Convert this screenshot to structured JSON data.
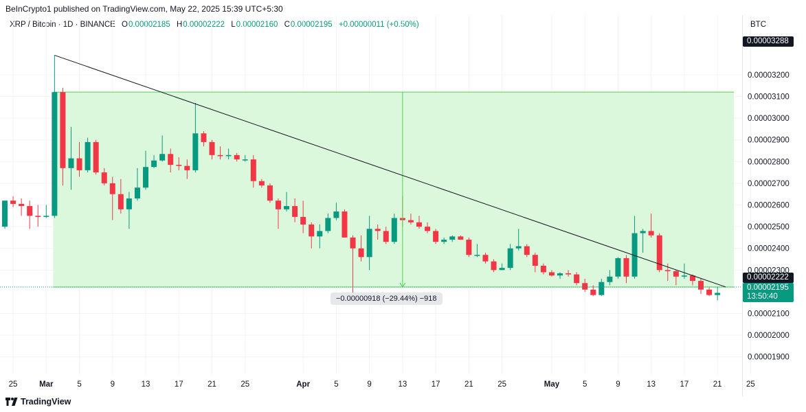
{
  "header": {
    "published": "BeInCrypto1 published on TradingView.com, May 22, 2025 15:39 UTC+5:30"
  },
  "legend": {
    "symbol": "XRP / Bitcoin · 1D · BINANCE",
    "open_label": "O",
    "open": "0.00002185",
    "high_label": "H",
    "high": "0.00002222",
    "low_label": "L",
    "low": "0.00002160",
    "close_label": "C",
    "close": "0.00002195",
    "change": "+0.00000011 (+0.50%)"
  },
  "currency": "BTC",
  "price_tags": {
    "top": "0.00003288",
    "level": "0.00002222",
    "last": "0.00002195",
    "countdown": "13:50:40"
  },
  "measure": {
    "label": "−0.00000918 (−29.44%) −918"
  },
  "branding": {
    "name": "TradingView"
  },
  "colors": {
    "up": "#089981",
    "down": "#f23645",
    "zone": "#dcf8dc",
    "zone_line": "#4cd34c",
    "trendline": "#131722"
  },
  "chart_data": {
    "type": "candlestick",
    "title": "XRP / Bitcoin · 1D · BINANCE",
    "ylim": [
      1.82e-05,
      3.475e-05
    ],
    "xlim": [
      "2025-02-24",
      "2025-05-26"
    ],
    "y_ticks": [
      "0.00003200",
      "0.00003100",
      "0.00003000",
      "0.00002900",
      "0.00002800",
      "0.00002700",
      "0.00002600",
      "0.00002500",
      "0.00002400",
      "0.00002300",
      "0.00002100",
      "0.00002000",
      "0.00001900"
    ],
    "x_ticks": [
      {
        "date": "2025-02-25",
        "label": "25"
      },
      {
        "date": "2025-03-01",
        "label": "Mar"
      },
      {
        "date": "2025-03-05",
        "label": "5"
      },
      {
        "date": "2025-03-09",
        "label": "9"
      },
      {
        "date": "2025-03-13",
        "label": "13"
      },
      {
        "date": "2025-03-17",
        "label": "17"
      },
      {
        "date": "2025-03-21",
        "label": "21"
      },
      {
        "date": "2025-03-25",
        "label": "25"
      },
      {
        "date": "2025-04-01",
        "label": "Apr"
      },
      {
        "date": "2025-04-05",
        "label": "5"
      },
      {
        "date": "2025-04-09",
        "label": "9"
      },
      {
        "date": "2025-04-13",
        "label": "13"
      },
      {
        "date": "2025-04-17",
        "label": "17"
      },
      {
        "date": "2025-04-21",
        "label": "21"
      },
      {
        "date": "2025-04-25",
        "label": "25"
      },
      {
        "date": "2025-05-01",
        "label": "May"
      },
      {
        "date": "2025-05-05",
        "label": "5"
      },
      {
        "date": "2025-05-09",
        "label": "9"
      },
      {
        "date": "2025-05-13",
        "label": "13"
      },
      {
        "date": "2025-05-17",
        "label": "17"
      },
      {
        "date": "2025-05-21",
        "label": "21"
      },
      {
        "date": "2025-05-25",
        "label": "25"
      }
    ],
    "candles": [
      {
        "date": "2025-02-24",
        "o": 2.5e-05,
        "h": 2.62e-05,
        "l": 2.49e-05,
        "c": 2.62e-05
      },
      {
        "date": "2025-02-25",
        "o": 2.62e-05,
        "h": 2.64e-05,
        "l": 2.59e-05,
        "c": 2.605e-05
      },
      {
        "date": "2025-02-26",
        "o": 2.605e-05,
        "h": 2.63e-05,
        "l": 2.55e-05,
        "c": 2.595e-05
      },
      {
        "date": "2025-02-27",
        "o": 2.595e-05,
        "h": 2.62e-05,
        "l": 2.49e-05,
        "c": 2.55e-05
      },
      {
        "date": "2025-02-28",
        "o": 2.55e-05,
        "h": 2.6e-05,
        "l": 2.5e-05,
        "c": 2.545e-05
      },
      {
        "date": "2025-03-01",
        "o": 2.545e-05,
        "h": 2.6e-05,
        "l": 2.54e-05,
        "c": 2.55e-05
      },
      {
        "date": "2025-03-02",
        "o": 2.55e-05,
        "h": 3.29e-05,
        "l": 2.54e-05,
        "c": 3.12e-05
      },
      {
        "date": "2025-03-03",
        "o": 3.12e-05,
        "h": 3.14e-05,
        "l": 2.69e-05,
        "c": 2.77e-05
      },
      {
        "date": "2025-03-04",
        "o": 2.77e-05,
        "h": 2.96e-05,
        "l": 2.67e-05,
        "c": 2.815e-05
      },
      {
        "date": "2025-03-05",
        "o": 2.815e-05,
        "h": 2.89e-05,
        "l": 2.73e-05,
        "c": 2.76e-05
      },
      {
        "date": "2025-03-06",
        "o": 2.76e-05,
        "h": 2.91e-05,
        "l": 2.75e-05,
        "c": 2.89e-05
      },
      {
        "date": "2025-03-07",
        "o": 2.89e-05,
        "h": 2.9e-05,
        "l": 2.74e-05,
        "c": 2.75e-05
      },
      {
        "date": "2025-03-08",
        "o": 2.75e-05,
        "h": 2.77e-05,
        "l": 2.69e-05,
        "c": 2.7e-05
      },
      {
        "date": "2025-03-09",
        "o": 2.7e-05,
        "h": 2.73e-05,
        "l": 2.53e-05,
        "c": 2.65e-05
      },
      {
        "date": "2025-03-10",
        "o": 2.65e-05,
        "h": 2.72e-05,
        "l": 2.56e-05,
        "c": 2.58e-05
      },
      {
        "date": "2025-03-11",
        "o": 2.58e-05,
        "h": 2.66e-05,
        "l": 2.49e-05,
        "c": 2.63e-05
      },
      {
        "date": "2025-03-12",
        "o": 2.63e-05,
        "h": 2.77e-05,
        "l": 2.62e-05,
        "c": 2.68e-05
      },
      {
        "date": "2025-03-13",
        "o": 2.68e-05,
        "h": 2.85e-05,
        "l": 2.67e-05,
        "c": 2.775e-05
      },
      {
        "date": "2025-03-14",
        "o": 2.775e-05,
        "h": 2.83e-05,
        "l": 2.77e-05,
        "c": 2.805e-05
      },
      {
        "date": "2025-03-15",
        "o": 2.805e-05,
        "h": 2.92e-05,
        "l": 2.8e-05,
        "c": 2.835e-05
      },
      {
        "date": "2025-03-16",
        "o": 2.835e-05,
        "h": 2.86e-05,
        "l": 2.75e-05,
        "c": 2.785e-05
      },
      {
        "date": "2025-03-17",
        "o": 2.785e-05,
        "h": 2.82e-05,
        "l": 2.76e-05,
        "c": 2.78e-05
      },
      {
        "date": "2025-03-18",
        "o": 2.78e-05,
        "h": 2.81e-05,
        "l": 2.72e-05,
        "c": 2.76e-05
      },
      {
        "date": "2025-03-19",
        "o": 2.76e-05,
        "h": 3.07e-05,
        "l": 2.75e-05,
        "c": 2.93e-05
      },
      {
        "date": "2025-03-20",
        "o": 2.93e-05,
        "h": 2.94e-05,
        "l": 2.87e-05,
        "c": 2.89e-05
      },
      {
        "date": "2025-03-21",
        "o": 2.89e-05,
        "h": 2.9e-05,
        "l": 2.81e-05,
        "c": 2.83e-05
      },
      {
        "date": "2025-03-22",
        "o": 2.83e-05,
        "h": 2.87e-05,
        "l": 2.81e-05,
        "c": 2.825e-05
      },
      {
        "date": "2025-03-23",
        "o": 2.825e-05,
        "h": 2.86e-05,
        "l": 2.81e-05,
        "c": 2.83e-05
      },
      {
        "date": "2025-03-24",
        "o": 2.83e-05,
        "h": 2.84e-05,
        "l": 2.8e-05,
        "c": 2.81e-05
      },
      {
        "date": "2025-03-25",
        "o": 2.81e-05,
        "h": 2.83e-05,
        "l": 2.8e-05,
        "c": 2.81e-05
      },
      {
        "date": "2025-03-26",
        "o": 2.81e-05,
        "h": 2.83e-05,
        "l": 2.68e-05,
        "c": 2.71e-05
      },
      {
        "date": "2025-03-27",
        "o": 2.71e-05,
        "h": 2.72e-05,
        "l": 2.68e-05,
        "c": 2.69e-05
      },
      {
        "date": "2025-03-28",
        "o": 2.69e-05,
        "h": 2.7e-05,
        "l": 2.61e-05,
        "c": 2.62e-05
      },
      {
        "date": "2025-03-29",
        "o": 2.62e-05,
        "h": 2.63e-05,
        "l": 2.49e-05,
        "c": 2.58e-05
      },
      {
        "date": "2025-03-30",
        "o": 2.58e-05,
        "h": 2.66e-05,
        "l": 2.57e-05,
        "c": 2.595e-05
      },
      {
        "date": "2025-03-31",
        "o": 2.595e-05,
        "h": 2.63e-05,
        "l": 2.52e-05,
        "c": 2.545e-05
      },
      {
        "date": "2025-04-01",
        "o": 2.545e-05,
        "h": 2.62e-05,
        "l": 2.47e-05,
        "c": 2.51e-05
      },
      {
        "date": "2025-04-02",
        "o": 2.51e-05,
        "h": 2.52e-05,
        "l": 2.4e-05,
        "c": 2.455e-05
      },
      {
        "date": "2025-04-03",
        "o": 2.455e-05,
        "h": 2.51e-05,
        "l": 2.4e-05,
        "c": 2.48e-05
      },
      {
        "date": "2025-04-04",
        "o": 2.48e-05,
        "h": 2.56e-05,
        "l": 2.47e-05,
        "c": 2.54e-05
      },
      {
        "date": "2025-04-05",
        "o": 2.54e-05,
        "h": 2.61e-05,
        "l": 2.53e-05,
        "c": 2.57e-05
      },
      {
        "date": "2025-04-06",
        "o": 2.57e-05,
        "h": 2.58e-05,
        "l": 2.45e-05,
        "c": 2.45e-05
      },
      {
        "date": "2025-04-07",
        "o": 2.45e-05,
        "h": 2.46e-05,
        "l": 2.16e-05,
        "c": 2.4e-05
      },
      {
        "date": "2025-04-08",
        "o": 2.4e-05,
        "h": 2.46e-05,
        "l": 2.34e-05,
        "c": 2.36e-05
      },
      {
        "date": "2025-04-09",
        "o": 2.36e-05,
        "h": 2.55e-05,
        "l": 2.3e-05,
        "c": 2.49e-05
      },
      {
        "date": "2025-04-10",
        "o": 2.49e-05,
        "h": 2.51e-05,
        "l": 2.44e-05,
        "c": 2.48e-05
      },
      {
        "date": "2025-04-11",
        "o": 2.48e-05,
        "h": 2.5e-05,
        "l": 2.42e-05,
        "c": 2.43e-05
      },
      {
        "date": "2025-04-12",
        "o": 2.43e-05,
        "h": 2.56e-05,
        "l": 2.42e-05,
        "c": 2.54e-05
      },
      {
        "date": "2025-04-13",
        "o": 2.54e-05,
        "h": 2.64e-05,
        "l": 2.5e-05,
        "c": 2.53e-05
      },
      {
        "date": "2025-04-14",
        "o": 2.53e-05,
        "h": 2.56e-05,
        "l": 2.51e-05,
        "c": 2.52e-05
      },
      {
        "date": "2025-04-15",
        "o": 2.52e-05,
        "h": 2.55e-05,
        "l": 2.49e-05,
        "c": 2.5e-05
      },
      {
        "date": "2025-04-16",
        "o": 2.5e-05,
        "h": 2.52e-05,
        "l": 2.47e-05,
        "c": 2.48e-05
      },
      {
        "date": "2025-04-17",
        "o": 2.48e-05,
        "h": 2.49e-05,
        "l": 2.42e-05,
        "c": 2.43e-05
      },
      {
        "date": "2025-04-18",
        "o": 2.43e-05,
        "h": 2.45e-05,
        "l": 2.42e-05,
        "c": 2.44e-05
      },
      {
        "date": "2025-04-19",
        "o": 2.44e-05,
        "h": 2.46e-05,
        "l": 2.43e-05,
        "c": 2.455e-05
      },
      {
        "date": "2025-04-20",
        "o": 2.455e-05,
        "h": 2.46e-05,
        "l": 2.44e-05,
        "c": 2.44e-05
      },
      {
        "date": "2025-04-21",
        "o": 2.44e-05,
        "h": 2.45e-05,
        "l": 2.36e-05,
        "c": 2.37e-05
      },
      {
        "date": "2025-04-22",
        "o": 2.37e-05,
        "h": 2.42e-05,
        "l": 2.36e-05,
        "c": 2.37e-05
      },
      {
        "date": "2025-04-23",
        "o": 2.37e-05,
        "h": 2.38e-05,
        "l": 2.33e-05,
        "c": 2.34e-05
      },
      {
        "date": "2025-04-24",
        "o": 2.34e-05,
        "h": 2.35e-05,
        "l": 2.29e-05,
        "c": 2.3e-05
      },
      {
        "date": "2025-04-25",
        "o": 2.3e-05,
        "h": 2.33e-05,
        "l": 2.3e-05,
        "c": 2.31e-05
      },
      {
        "date": "2025-04-26",
        "o": 2.31e-05,
        "h": 2.42e-05,
        "l": 2.3e-05,
        "c": 2.4e-05
      },
      {
        "date": "2025-04-27",
        "o": 2.4e-05,
        "h": 2.49e-05,
        "l": 2.39e-05,
        "c": 2.41e-05
      },
      {
        "date": "2025-04-28",
        "o": 2.41e-05,
        "h": 2.42e-05,
        "l": 2.36e-05,
        "c": 2.37e-05
      },
      {
        "date": "2025-04-29",
        "o": 2.37e-05,
        "h": 2.38e-05,
        "l": 2.29e-05,
        "c": 2.32e-05
      },
      {
        "date": "2025-04-30",
        "o": 2.32e-05,
        "h": 2.33e-05,
        "l": 2.28e-05,
        "c": 2.29e-05
      },
      {
        "date": "2025-05-01",
        "o": 2.29e-05,
        "h": 2.3e-05,
        "l": 2.27e-05,
        "c": 2.275e-05
      },
      {
        "date": "2025-05-02",
        "o": 2.275e-05,
        "h": 2.29e-05,
        "l": 2.26e-05,
        "c": 2.285e-05
      },
      {
        "date": "2025-05-03",
        "o": 2.285e-05,
        "h": 2.3e-05,
        "l": 2.27e-05,
        "c": 2.28e-05
      },
      {
        "date": "2025-05-04",
        "o": 2.28e-05,
        "h": 2.29e-05,
        "l": 2.23e-05,
        "c": 2.24e-05
      },
      {
        "date": "2025-05-05",
        "o": 2.24e-05,
        "h": 2.26e-05,
        "l": 2.2e-05,
        "c": 2.21e-05
      },
      {
        "date": "2025-05-06",
        "o": 2.21e-05,
        "h": 2.23e-05,
        "l": 2.18e-05,
        "c": 2.185e-05
      },
      {
        "date": "2025-05-07",
        "o": 2.185e-05,
        "h": 2.26e-05,
        "l": 2.18e-05,
        "c": 2.245e-05
      },
      {
        "date": "2025-05-08",
        "o": 2.245e-05,
        "h": 2.3e-05,
        "l": 2.23e-05,
        "c": 2.27e-05
      },
      {
        "date": "2025-05-09",
        "o": 2.27e-05,
        "h": 2.36e-05,
        "l": 2.26e-05,
        "c": 2.355e-05
      },
      {
        "date": "2025-05-10",
        "o": 2.355e-05,
        "h": 2.37e-05,
        "l": 2.24e-05,
        "c": 2.27e-05
      },
      {
        "date": "2025-05-11",
        "o": 2.27e-05,
        "h": 2.55e-05,
        "l": 2.26e-05,
        "c": 2.47e-05
      },
      {
        "date": "2025-05-12",
        "o": 2.47e-05,
        "h": 2.49e-05,
        "l": 2.38e-05,
        "c": 2.48e-05
      },
      {
        "date": "2025-05-13",
        "o": 2.48e-05,
        "h": 2.56e-05,
        "l": 2.45e-05,
        "c": 2.46e-05
      },
      {
        "date": "2025-05-14",
        "o": 2.46e-05,
        "h": 2.47e-05,
        "l": 2.29e-05,
        "c": 2.3e-05
      },
      {
        "date": "2025-05-15",
        "o": 2.3e-05,
        "h": 2.33e-05,
        "l": 2.25e-05,
        "c": 2.295e-05
      },
      {
        "date": "2025-05-16",
        "o": 2.295e-05,
        "h": 2.3e-05,
        "l": 2.23e-05,
        "c": 2.27e-05
      },
      {
        "date": "2025-05-17",
        "o": 2.27e-05,
        "h": 2.33e-05,
        "l": 2.26e-05,
        "c": 2.275e-05
      },
      {
        "date": "2025-05-18",
        "o": 2.275e-05,
        "h": 2.28e-05,
        "l": 2.23e-05,
        "c": 2.25e-05
      },
      {
        "date": "2025-05-19",
        "o": 2.25e-05,
        "h": 2.26e-05,
        "l": 2.19e-05,
        "c": 2.21e-05
      },
      {
        "date": "2025-05-20",
        "o": 2.21e-05,
        "h": 2.22e-05,
        "l": 2.18e-05,
        "c": 2.185e-05
      },
      {
        "date": "2025-05-21",
        "o": 2.185e-05,
        "h": 2.222e-05,
        "l": 2.16e-05,
        "c": 2.195e-05
      }
    ],
    "zone": {
      "top": 3.12e-05,
      "bottom": 2.222e-05,
      "start": "2025-03-02",
      "end": "2025-05-22"
    },
    "trendline": {
      "start": {
        "date": "2025-03-02",
        "price": 3.29e-05
      },
      "end": {
        "date": "2025-05-22",
        "price": 2.222e-05
      }
    },
    "measure_line": {
      "date": "2025-04-13",
      "from": 3.12e-05,
      "to": 2.222e-05
    },
    "last_price_line": 2.222e-05
  }
}
